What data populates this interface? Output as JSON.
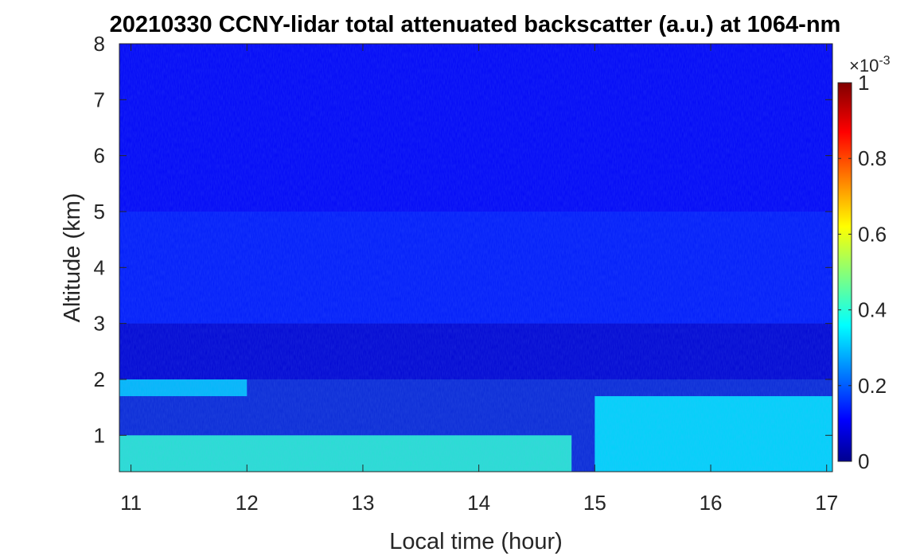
{
  "chart_data": {
    "type": "heatmap",
    "title": "20210330 CCNY-lidar total attenuated backscatter (a.u.) at 1064-nm",
    "xlabel": "Local time (hour)",
    "ylabel": "Altitude (km)",
    "xlim": [
      10.9,
      17.05
    ],
    "ylim": [
      0.35,
      8
    ],
    "x_ticks": [
      11,
      12,
      13,
      14,
      15,
      16,
      17
    ],
    "y_ticks": [
      1,
      2,
      3,
      4,
      5,
      6,
      7,
      8
    ],
    "colorbar": {
      "colormap": "jet",
      "clim": [
        0,
        1
      ],
      "ticks": [
        0,
        0.2,
        0.4,
        0.6,
        0.8,
        1
      ],
      "tick_labels": [
        "0",
        "0.2",
        "0.4",
        "0.6",
        "0.8",
        "1"
      ],
      "multiplier_base": "×10",
      "multiplier_exponent": "-3"
    },
    "features": [
      {
        "altitude_km": [
          0.35,
          1.0
        ],
        "time_h": [
          10.9,
          14.8
        ],
        "value_x1e-3": 0.42
      },
      {
        "altitude_km": [
          0.35,
          1.7
        ],
        "time_h": [
          15.0,
          17.05
        ],
        "value_x1e-3": 0.36
      },
      {
        "altitude_km": [
          1.7,
          2.0
        ],
        "time_h": [
          10.9,
          12.0
        ],
        "value_x1e-3": 0.33
      },
      {
        "altitude_km": [
          2.0,
          3.0
        ],
        "time_h": [
          10.9,
          17.05
        ],
        "value_x1e-3": 0.08
      },
      {
        "altitude_km": [
          3.0,
          5.0
        ],
        "time_h": [
          10.9,
          17.05
        ],
        "value_x1e-3": 0.15
      },
      {
        "altitude_km": [
          5.0,
          8.0
        ],
        "time_h": [
          10.9,
          17.05
        ],
        "value_x1e-3": 0.12
      }
    ]
  }
}
